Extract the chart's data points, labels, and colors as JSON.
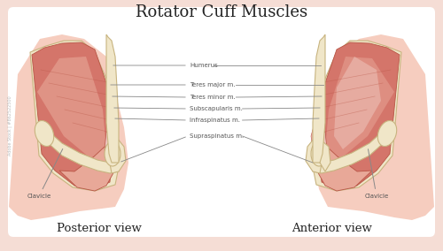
{
  "title": "Rotator Cuff Muscles",
  "title_fontsize": 13,
  "bg_color": "#f5ddd5",
  "panel_bg": "#ffffff",
  "bone_color": "#f0e6c8",
  "bone_outline": "#c8b480",
  "muscle_red": "#d4756a",
  "muscle_light": "#e8a898",
  "muscle_pink": "#f0b8b0",
  "muscle_dark": "#b85545",
  "muscle_pale": "#efc8c0",
  "skin_bg": "#f5c8b8",
  "posterior_label": "Posterior view",
  "anterior_label": "Anterior view",
  "label_color": "#555555",
  "label_fontsize": 5.0,
  "view_fontsize": 9.5,
  "line_color": "#888888",
  "watermark": "Adobe Stock | #862522500"
}
